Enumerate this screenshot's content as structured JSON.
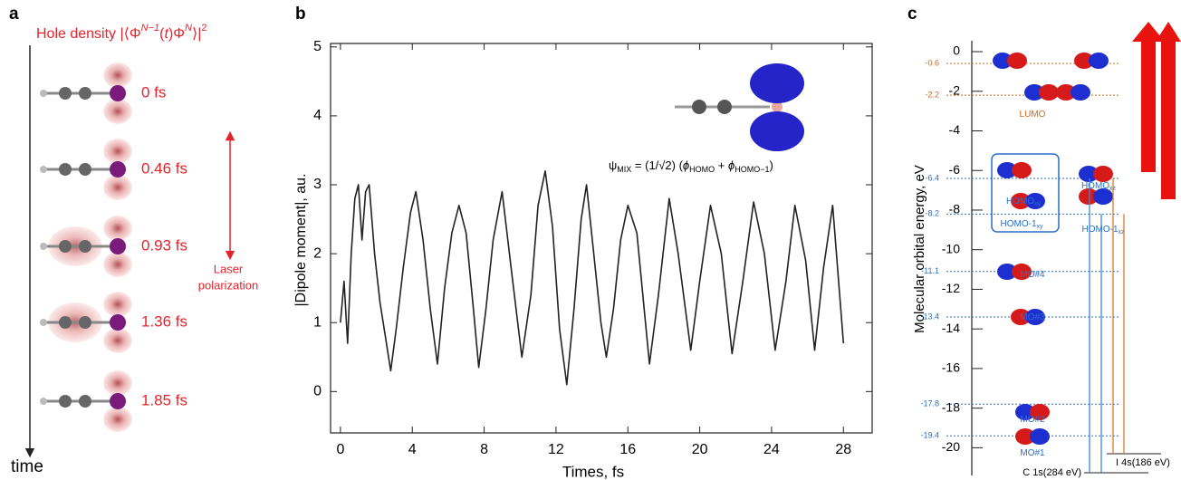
{
  "panel_a": {
    "letter": "a",
    "title": [
      "Hole density |⟨Φ",
      "N−1",
      "(",
      "t",
      ")Φ",
      "N",
      "⟩|",
      "2"
    ],
    "times": [
      "0 fs",
      "0.46 fs",
      "0.93 fs",
      "1.36 fs",
      "1.85 fs"
    ],
    "laser": [
      "Laser",
      "polarization"
    ],
    "axis_label": "time"
  },
  "chart_data": [
    {
      "type": "line",
      "letter": "b",
      "xlabel": "Times, fs",
      "ylabel": "|Dipole moment|, au.",
      "annotation": [
        "ψ",
        "MIX",
        " = (1/√2) (",
        "ϕ",
        "HOMO",
        " + ",
        "ϕ",
        "HOMO−1",
        ")"
      ],
      "xlim": [
        -0.55,
        29.6
      ],
      "ylim": [
        -0.6,
        5.05
      ],
      "xticks": [
        0,
        4,
        8,
        12,
        16,
        20,
        24,
        28
      ],
      "yticks": [
        0,
        1,
        2,
        3,
        4,
        5
      ],
      "series": [
        {
          "color": "#222222",
          "x": [
            0,
            0.2,
            0.4,
            0.6,
            0.8,
            1.0,
            1.2,
            1.4,
            1.6,
            1.9,
            2.2,
            2.5,
            2.8,
            3.1,
            3.5,
            3.9,
            4.2,
            4.6,
            5.0,
            5.4,
            5.8,
            6.2,
            6.6,
            7.0,
            7.4,
            7.7,
            8.1,
            8.5,
            9.0,
            9.5,
            10.1,
            10.6,
            11.0,
            11.4,
            11.8,
            12.2,
            12.6,
            13.0,
            13.4,
            13.7,
            14.1,
            14.5,
            14.8,
            15.2,
            15.6,
            16.0,
            16.5,
            17.2,
            17.7,
            18.3,
            18.8,
            19.5,
            20.0,
            20.6,
            21.2,
            21.8,
            22.4,
            23.0,
            23.6,
            24.2,
            24.8,
            25.3,
            25.9,
            26.4,
            26.9,
            27.4,
            28.0
          ],
          "values": [
            1.0,
            1.6,
            0.7,
            2.0,
            2.8,
            3.0,
            2.2,
            2.9,
            3.0,
            2.0,
            1.3,
            0.8,
            0.3,
            0.9,
            1.8,
            2.6,
            2.9,
            2.2,
            1.2,
            0.4,
            1.5,
            2.3,
            2.7,
            2.3,
            1.2,
            0.35,
            1.2,
            2.2,
            2.9,
            1.8,
            0.5,
            1.4,
            2.7,
            3.2,
            2.4,
            0.9,
            0.1,
            1.2,
            2.5,
            3.0,
            2.0,
            1.0,
            0.5,
            1.2,
            2.2,
            2.7,
            2.3,
            0.4,
            1.4,
            2.8,
            2.0,
            0.6,
            1.6,
            2.7,
            2.0,
            0.55,
            1.6,
            2.75,
            2.0,
            0.6,
            1.6,
            2.7,
            1.9,
            0.6,
            1.8,
            2.7,
            0.7
          ]
        }
      ]
    },
    {
      "type": "levels",
      "letter": "c",
      "ylabel": "Molecular orbital energy, eV",
      "ylim": [
        -21.4,
        0.55
      ],
      "yticks": [
        0,
        -2,
        -4,
        -6,
        -8,
        -10,
        -12,
        -14,
        -16,
        -18,
        -20
      ],
      "levels": [
        -0.6,
        -2.2,
        -6.4,
        -8.2,
        -11.1,
        -13.4,
        -17.8,
        -19.4
      ],
      "level_colors": [
        "#d2691e",
        "#d2691e",
        "#2a6fc9",
        "#2a6fc9",
        "#2a6fc9",
        "#2a6fc9",
        "#2a6fc9",
        "#2a6fc9"
      ],
      "orbitals": [
        [
          "LUMO",
          ""
        ],
        [
          "HOMO",
          "xy"
        ],
        [
          "HOMO-1",
          "xy"
        ],
        [
          "HOMO",
          "xz"
        ],
        [
          "HOMO-1",
          "xz"
        ],
        [
          "MO#4",
          ""
        ],
        [
          "MO#3",
          ""
        ],
        [
          "MO#2",
          ""
        ],
        [
          "MO#1",
          ""
        ]
      ],
      "core_levels": [
        "C 1s(284 eV)",
        "I 4s(186 eV)"
      ]
    }
  ]
}
